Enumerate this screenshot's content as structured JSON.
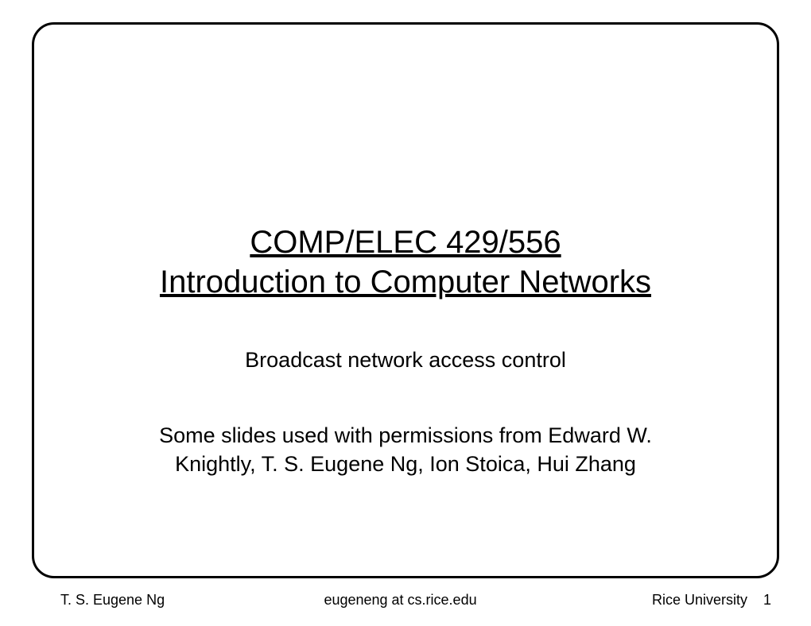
{
  "slide": {
    "title_line1": "COMP/ELEC 429/556",
    "title_line2": "Introduction to Computer Networks",
    "subtitle": "Broadcast network access control",
    "credit_line1": "Some slides used with permissions from Edward W.",
    "credit_line2": "Knightly, T. S. Eugene Ng, Ion Stoica, Hui Zhang"
  },
  "footer": {
    "author": "T. S. Eugene Ng",
    "email": "eugeneng at cs.rice.edu",
    "affiliation": "Rice University",
    "page": "1"
  },
  "style": {
    "background_color": "#ffffff",
    "border_color": "#000000",
    "border_width": 3,
    "border_radius": 28,
    "title_fontsize": 40,
    "title_color": "#000000",
    "subtitle_fontsize": 27,
    "credit_fontsize": 27,
    "footer_fontsize": 18,
    "font_family": "Arial"
  }
}
